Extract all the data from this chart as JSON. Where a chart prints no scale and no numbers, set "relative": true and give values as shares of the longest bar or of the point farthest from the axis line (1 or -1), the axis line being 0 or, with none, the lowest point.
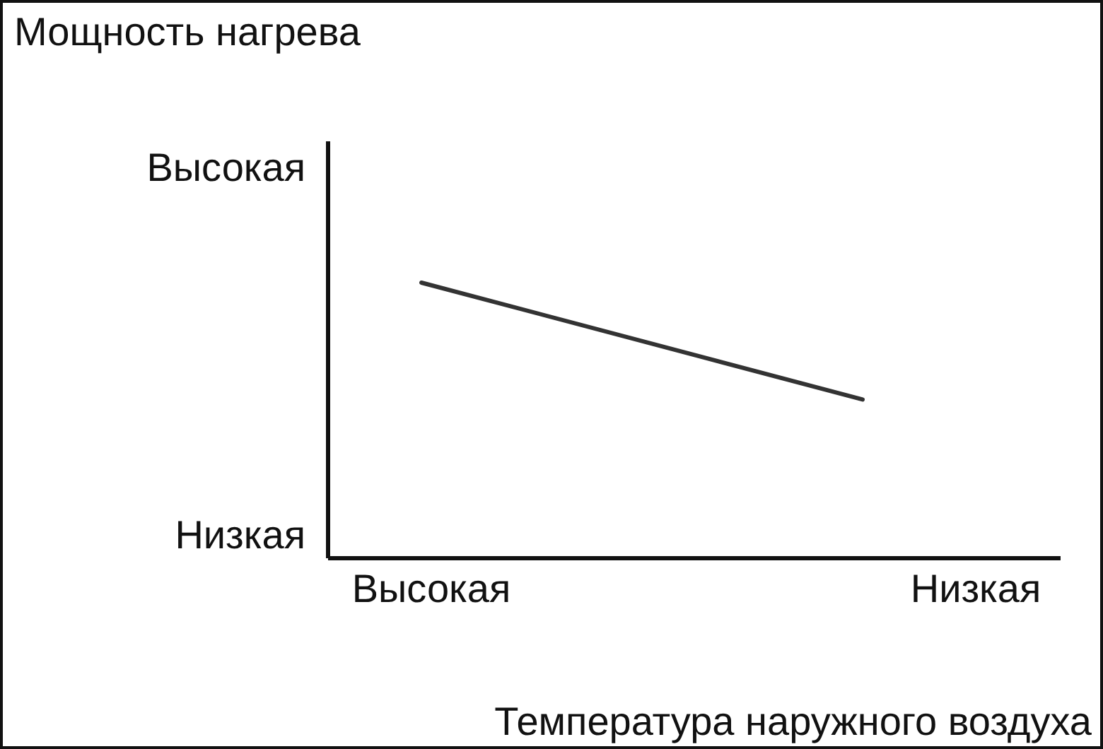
{
  "chart_data": {
    "type": "line",
    "title": "Мощность нагрева",
    "xlabel": "Температура наружного воздуха",
    "relative": true,
    "categories": [
      null,
      null
    ],
    "series": [
      {
        "color": "#333333",
        "values": [
          1,
          0.576
        ]
      }
    ],
    "annotations": [
      "Высокая",
      "Низкая",
      "Высокая",
      "Низкая"
    ],
    "grid": false,
    "marker": "none",
    "line_style": "solid"
  }
}
